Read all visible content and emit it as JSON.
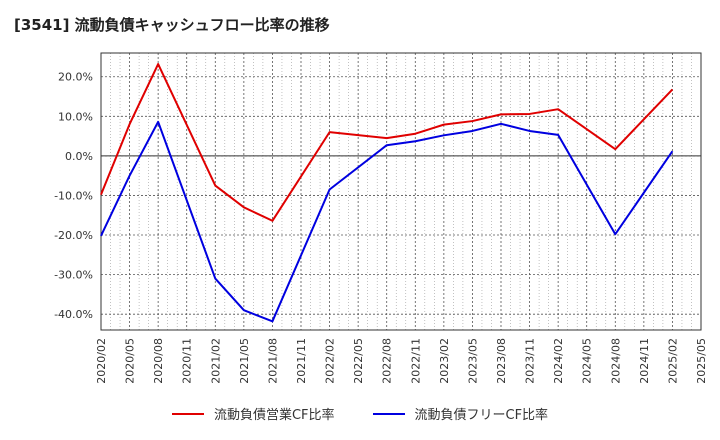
{
  "chart_data": {
    "type": "line",
    "title": "[3541]  流動負債キャッシュフロー比率の推移",
    "xlabel": "",
    "ylabel": "",
    "ylim": [
      -44,
      26
    ],
    "y_ticks": [
      20,
      10,
      0,
      -10,
      -20,
      -30,
      -40
    ],
    "y_tick_labels": [
      "20.0%",
      "10.0%",
      "0.0%",
      "-10.0%",
      "-20.0%",
      "-30.0%",
      "-40.0%"
    ],
    "x": [
      "2020/02",
      "2020/05",
      "2020/08",
      "2020/11",
      "2021/02",
      "2021/05",
      "2021/08",
      "2021/11",
      "2022/02",
      "2022/05",
      "2022/08",
      "2022/11",
      "2023/02",
      "2023/05",
      "2023/08",
      "2023/11",
      "2024/02",
      "2024/05",
      "2024/08",
      "2024/11",
      "2025/02",
      "2025/05"
    ],
    "grid": true,
    "legend_position": "bottom",
    "series": [
      {
        "name": "流動負債営業CF比率",
        "color": "#e00000",
        "points": [
          [
            "2020/02",
            -9.8
          ],
          [
            "2020/05",
            8.0
          ],
          [
            "2020/08",
            23.2
          ],
          [
            "2021/02",
            -7.5
          ],
          [
            "2021/05",
            -13.0
          ],
          [
            "2021/08",
            -16.4
          ],
          [
            "2022/02",
            6.0
          ],
          [
            "2022/08",
            4.5
          ],
          [
            "2022/11",
            5.6
          ],
          [
            "2023/02",
            7.9
          ],
          [
            "2023/05",
            8.8
          ],
          [
            "2023/08",
            10.5
          ],
          [
            "2023/11",
            10.6
          ],
          [
            "2024/02",
            11.8
          ],
          [
            "2024/08",
            1.7
          ],
          [
            "2025/02",
            16.8
          ]
        ]
      },
      {
        "name": "流動負債フリーCF比率",
        "color": "#0000e0",
        "points": [
          [
            "2020/02",
            -20.2
          ],
          [
            "2020/05",
            -5.0
          ],
          [
            "2020/08",
            8.6
          ],
          [
            "2021/02",
            -31.0
          ],
          [
            "2021/05",
            -39.0
          ],
          [
            "2021/08",
            -41.8
          ],
          [
            "2022/02",
            -8.5
          ],
          [
            "2022/08",
            2.7
          ],
          [
            "2022/11",
            3.7
          ],
          [
            "2023/02",
            5.2
          ],
          [
            "2023/05",
            6.3
          ],
          [
            "2023/08",
            8.1
          ],
          [
            "2023/11",
            6.3
          ],
          [
            "2024/02",
            5.3
          ],
          [
            "2024/08",
            -19.8
          ],
          [
            "2025/02",
            1.2
          ]
        ]
      }
    ]
  }
}
